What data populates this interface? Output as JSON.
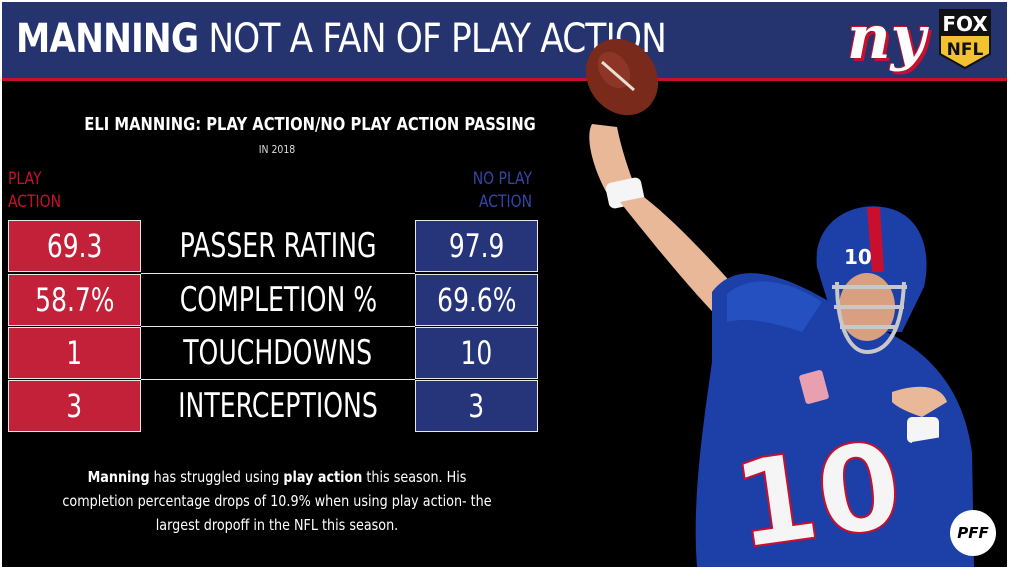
{
  "header": {
    "title_bold": "MANNING",
    "title_rest": " NOT A FAN OF PLAY ACTION",
    "team_logo_text": "ny",
    "network_line1": "FOX",
    "network_line2": "NFL"
  },
  "chart": {
    "heading": "ELI MANNING: PLAY ACTION/NO PLAY ACTION PASSING",
    "subheading": "IN 2018",
    "left_legend_line1": "PLAY",
    "left_legend_line2": "ACTION",
    "right_legend_line1": "NO PLAY",
    "right_legend_line2": "ACTION",
    "rows": [
      {
        "label": "PASSER RATING",
        "play_action": "69.3",
        "no_play_action": "97.9"
      },
      {
        "label": "COMPLETION %",
        "play_action": "58.7%",
        "no_play_action": "69.6%"
      },
      {
        "label": "TOUCHDOWNS",
        "play_action": "1",
        "no_play_action": "10"
      },
      {
        "label": "INTERCEPTIONS",
        "play_action": "3",
        "no_play_action": "3"
      }
    ]
  },
  "note": {
    "part1_bold": "Manning",
    "part2": " has struggled using ",
    "part3_bold": "play action",
    "part4": " this season. His completion percentage drops of 10.9% when using play action- the largest dropoff in the NFL this season."
  },
  "player": {
    "jersey_number": "10",
    "helmet_number": "10"
  },
  "watermark": "PFF",
  "colors": {
    "header_blue": "#25336e",
    "play_action_red": "#c3203a",
    "no_play_action_blue": "#26357a"
  }
}
